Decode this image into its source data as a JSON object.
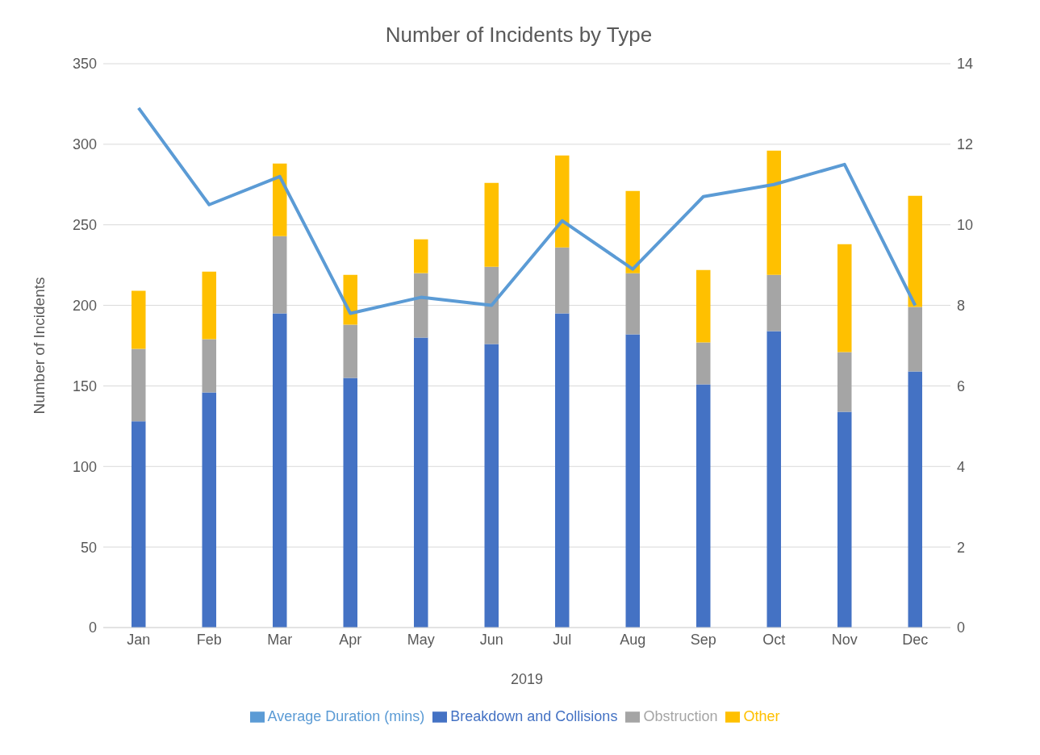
{
  "chart_data": {
    "type": "bar",
    "title": "Number of Incidents by Type",
    "xlabel": "2019",
    "ylabel": "Number of Incidents",
    "categories": [
      "Jan",
      "Feb",
      "Mar",
      "Apr",
      "May",
      "Jun",
      "Jul",
      "Aug",
      "Sep",
      "Oct",
      "Nov",
      "Dec"
    ],
    "stacked": true,
    "series": [
      {
        "name": "Breakdown and Collisions",
        "color": "#4472c4",
        "values": [
          128,
          146,
          195,
          155,
          180,
          176,
          195,
          182,
          151,
          184,
          134,
          159
        ]
      },
      {
        "name": "Obstruction",
        "color": "#a5a5a5",
        "values": [
          45,
          33,
          48,
          33,
          40,
          48,
          41,
          38,
          26,
          35,
          37,
          40
        ]
      },
      {
        "name": "Other",
        "color": "#ffc000",
        "values": [
          36,
          42,
          45,
          31,
          21,
          52,
          57,
          51,
          45,
          77,
          67,
          69
        ]
      },
      {
        "name": "Average Duration (mins)",
        "type": "line",
        "axis": "y2",
        "color": "#5b9bd5",
        "values": [
          12.9,
          10.5,
          11.2,
          7.8,
          8.2,
          8.0,
          10.1,
          8.9,
          10.7,
          11.0,
          11.5,
          8.0
        ]
      }
    ],
    "ylim": [
      0,
      350
    ],
    "yticks": [
      0,
      50,
      100,
      150,
      200,
      250,
      300,
      350
    ],
    "y2lim": [
      0,
      14
    ],
    "y2ticks": [
      0,
      2,
      4,
      6,
      8,
      10,
      12,
      14
    ],
    "grid": "y",
    "legend": "bottom",
    "marker": "none",
    "line_style": "solid"
  }
}
